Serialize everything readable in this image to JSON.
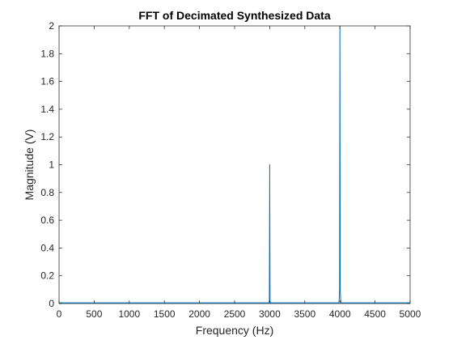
{
  "chart_data": {
    "type": "line",
    "title": "FFT of Decimated Synthesized Data",
    "xlabel": "Frequency (Hz)",
    "ylabel": "Magnitude (V)",
    "xlim": [
      0,
      5000
    ],
    "ylim": [
      0,
      2
    ],
    "xticks": [
      "0",
      "500",
      "1000",
      "1500",
      "2000",
      "2500",
      "3000",
      "3500",
      "4000",
      "4500",
      "5000"
    ],
    "yticks": [
      "0",
      "0.2",
      "0.4",
      "0.6",
      "0.8",
      "1",
      "1.2",
      "1.4",
      "1.6",
      "1.8",
      "2"
    ],
    "grid": false,
    "series": [
      {
        "color": "#0072BD",
        "x": [
          0,
          2990,
          2995,
          3000,
          3005,
          3010,
          3985,
          3990,
          3995,
          4000,
          4005,
          4010,
          4015,
          5000
        ],
        "y": [
          0.005,
          0.005,
          0.02,
          1.0,
          0.02,
          0.005,
          0.005,
          0.03,
          0.1,
          2.0,
          0.1,
          0.03,
          0.005,
          0.005
        ]
      }
    ],
    "colors": {
      "axis": "#262626",
      "background": "#ffffff"
    }
  }
}
